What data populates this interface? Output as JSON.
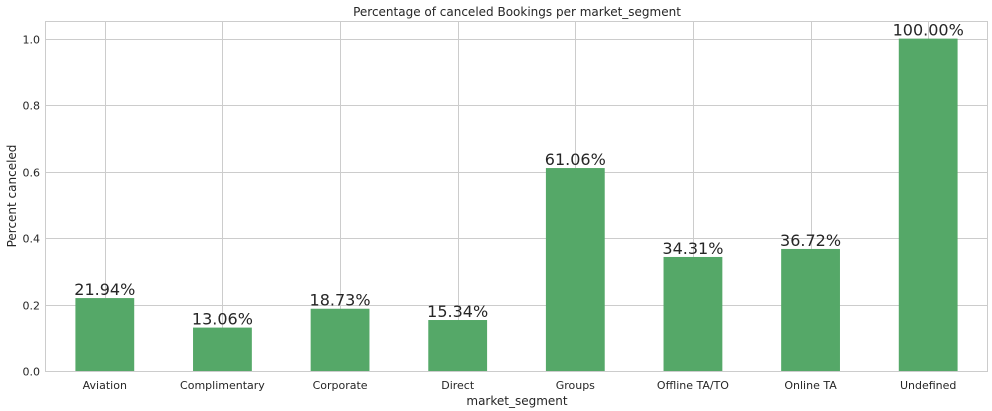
{
  "chart_data": {
    "type": "bar",
    "title": "Percentage of canceled Bookings per market_segment",
    "xlabel": "market_segment",
    "ylabel": "Percent canceled",
    "categories": [
      "Aviation",
      "Complimentary",
      "Corporate",
      "Direct",
      "Groups",
      "Offline TA/TO",
      "Online TA",
      "Undefined"
    ],
    "values": [
      0.2194,
      0.1306,
      0.1873,
      0.1534,
      0.6106,
      0.3431,
      0.3672,
      1.0
    ],
    "value_labels": [
      "21.94%",
      "13.06%",
      "18.73%",
      "15.34%",
      "61.06%",
      "34.31%",
      "36.72%",
      "100.00%"
    ],
    "ylim": [
      0,
      1.05
    ],
    "yticks": [
      0.0,
      0.2,
      0.4,
      0.6,
      0.8,
      1.0
    ],
    "ytick_labels": [
      "0.0",
      "0.2",
      "0.4",
      "0.6",
      "0.8",
      "1.0"
    ],
    "grid": true,
    "bar_color": "#55a868"
  }
}
